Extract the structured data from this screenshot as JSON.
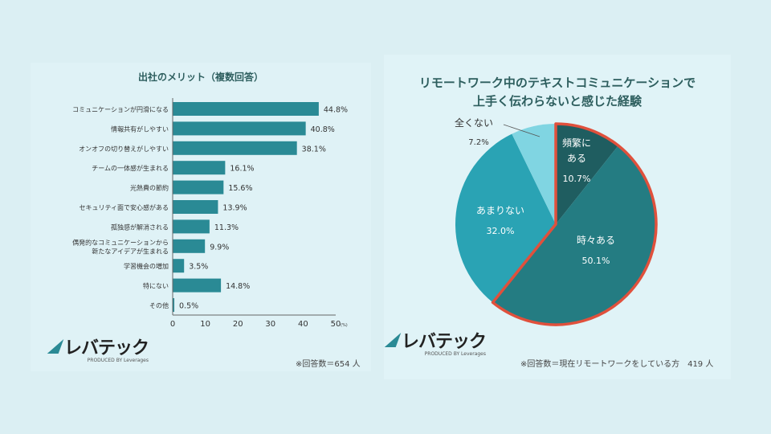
{
  "chart_data": [
    {
      "type": "bar",
      "orientation": "horizontal",
      "title": "出社のメリット（複数回答）",
      "categories": [
        "コミュニケーションが円滑になる",
        "情報共有がしやすい",
        "オンオフの切り替えがしやすい",
        "チームの一体感が生まれる",
        "光熱費の節約",
        "セキュリティ面で安心感がある",
        "孤独感が解消される",
        "偶発的なコミュニケーションから\n新たなアイデアが生まれる",
        "学習機会の増加",
        "特にない",
        "その他"
      ],
      "values": [
        44.8,
        40.8,
        38.1,
        16.1,
        15.6,
        13.9,
        11.3,
        9.9,
        3.5,
        14.8,
        0.5
      ],
      "value_labels": [
        "44.8%",
        "40.8%",
        "38.1%",
        "16.1%",
        "15.6%",
        "13.9%",
        "11.3%",
        "9.9%",
        "3.5%",
        "14.8%",
        "0.5%"
      ],
      "xlim": [
        0,
        50
      ],
      "xticks": [
        "0",
        "10",
        "20",
        "30",
        "40",
        "50"
      ],
      "xunit": "(%)",
      "color": "#2a8a95"
    },
    {
      "type": "pie",
      "title": [
        "リモートワーク中のテキストコミュニケーションで",
        "上手く伝わらないと感じた経験"
      ],
      "slices": [
        {
          "label": "頻繁に\nある",
          "value": 10.7,
          "value_label": "10.7%",
          "color": "#1f5d60"
        },
        {
          "label": "時々ある",
          "value": 50.1,
          "value_label": "50.1%",
          "color": "#247c82"
        },
        {
          "label": "あまりない",
          "value": 32.0,
          "value_label": "32.0%",
          "color": "#2aa3b4"
        },
        {
          "label": "全くない",
          "value": 7.2,
          "value_label": "7.2%",
          "color": "#80d5e2"
        }
      ],
      "highlight_color": "#e0503c"
    }
  ],
  "left": {
    "logo": "レバテック",
    "logo_sub": "PRODUCED BY Leverages",
    "note": "※回答数＝654 人"
  },
  "right": {
    "logo": "レバテック",
    "logo_sub": "PRODUCED BY Leverages",
    "note": "※回答数＝現在リモートワークをしている方　419 人"
  }
}
